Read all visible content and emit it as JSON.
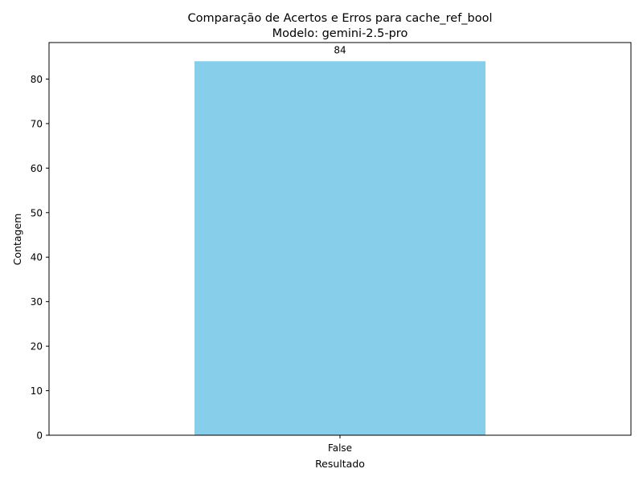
{
  "chart_data": {
    "type": "bar",
    "title": "Comparação de Acertos e Erros para cache_ref_bool",
    "subtitle": "Modelo: gemini-2.5-pro",
    "xlabel": "Resultado",
    "ylabel": "Contagem",
    "categories": [
      "False"
    ],
    "values": [
      84
    ],
    "data_labels": [
      "84"
    ],
    "ylim": [
      0,
      88.2
    ],
    "yticks": [
      0,
      10,
      20,
      30,
      40,
      50,
      60,
      70,
      80
    ],
    "grid": false,
    "legend": "none",
    "colors": {
      "bar": "#87CEEB",
      "axis": "#000000",
      "background": "#ffffff"
    }
  }
}
